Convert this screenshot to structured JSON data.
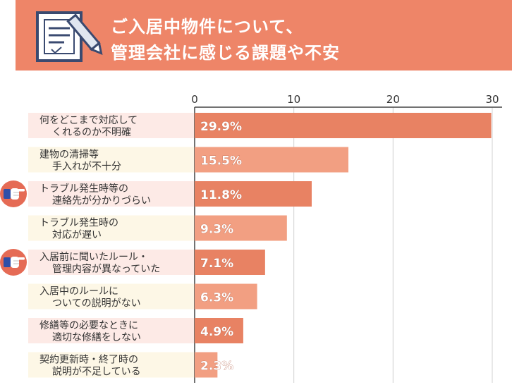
{
  "header": {
    "title_line1": "ご入居中物件について、",
    "title_line2": "管理会社に感じる課題や不安"
  },
  "colors": {
    "header_bg": "#ee8568",
    "bar_dark": "#e88263",
    "bar_light": "#f29f82",
    "label_bg_odd": "#fdeae6",
    "label_bg_even": "#fdf7e6",
    "pointer_badge": "#e56b55"
  },
  "icons": {
    "header": "document-pencil-icon",
    "pointer": "pointing-hand-icon"
  },
  "chart_data": {
    "type": "bar",
    "orientation": "horizontal",
    "categories": [
      [
        "何をどこまで対応して",
        "くれるのか不明確"
      ],
      [
        "建物の清掃等",
        "手入れが不十分"
      ],
      [
        "トラブル発生時等の",
        "連絡先が分かりづらい"
      ],
      [
        "トラブル発生時の",
        "対応が遅い"
      ],
      [
        "入居前に聞いたルール・",
        "管理内容が異なっていた"
      ],
      [
        "入居中のルールに",
        "ついての説明がない"
      ],
      [
        "修繕等の必要なときに",
        "適切な修繕をしない"
      ],
      [
        "契約更新時・終了時の",
        "説明が不足している"
      ]
    ],
    "values": [
      29.9,
      15.5,
      11.8,
      9.3,
      7.1,
      6.3,
      4.9,
      2.3
    ],
    "data_labels": [
      "29.9%",
      "15.5%",
      "11.8%",
      "9.3%",
      "7.1%",
      "6.3%",
      "4.9%",
      "2.3%"
    ],
    "highlighted": [
      false,
      false,
      true,
      false,
      true,
      false,
      false,
      false
    ],
    "xlim": [
      0,
      30
    ],
    "x_ticks": [
      0,
      10,
      20,
      30
    ],
    "x_tick_labels": [
      "0",
      "10",
      "20",
      "30"
    ],
    "unit": "%"
  }
}
